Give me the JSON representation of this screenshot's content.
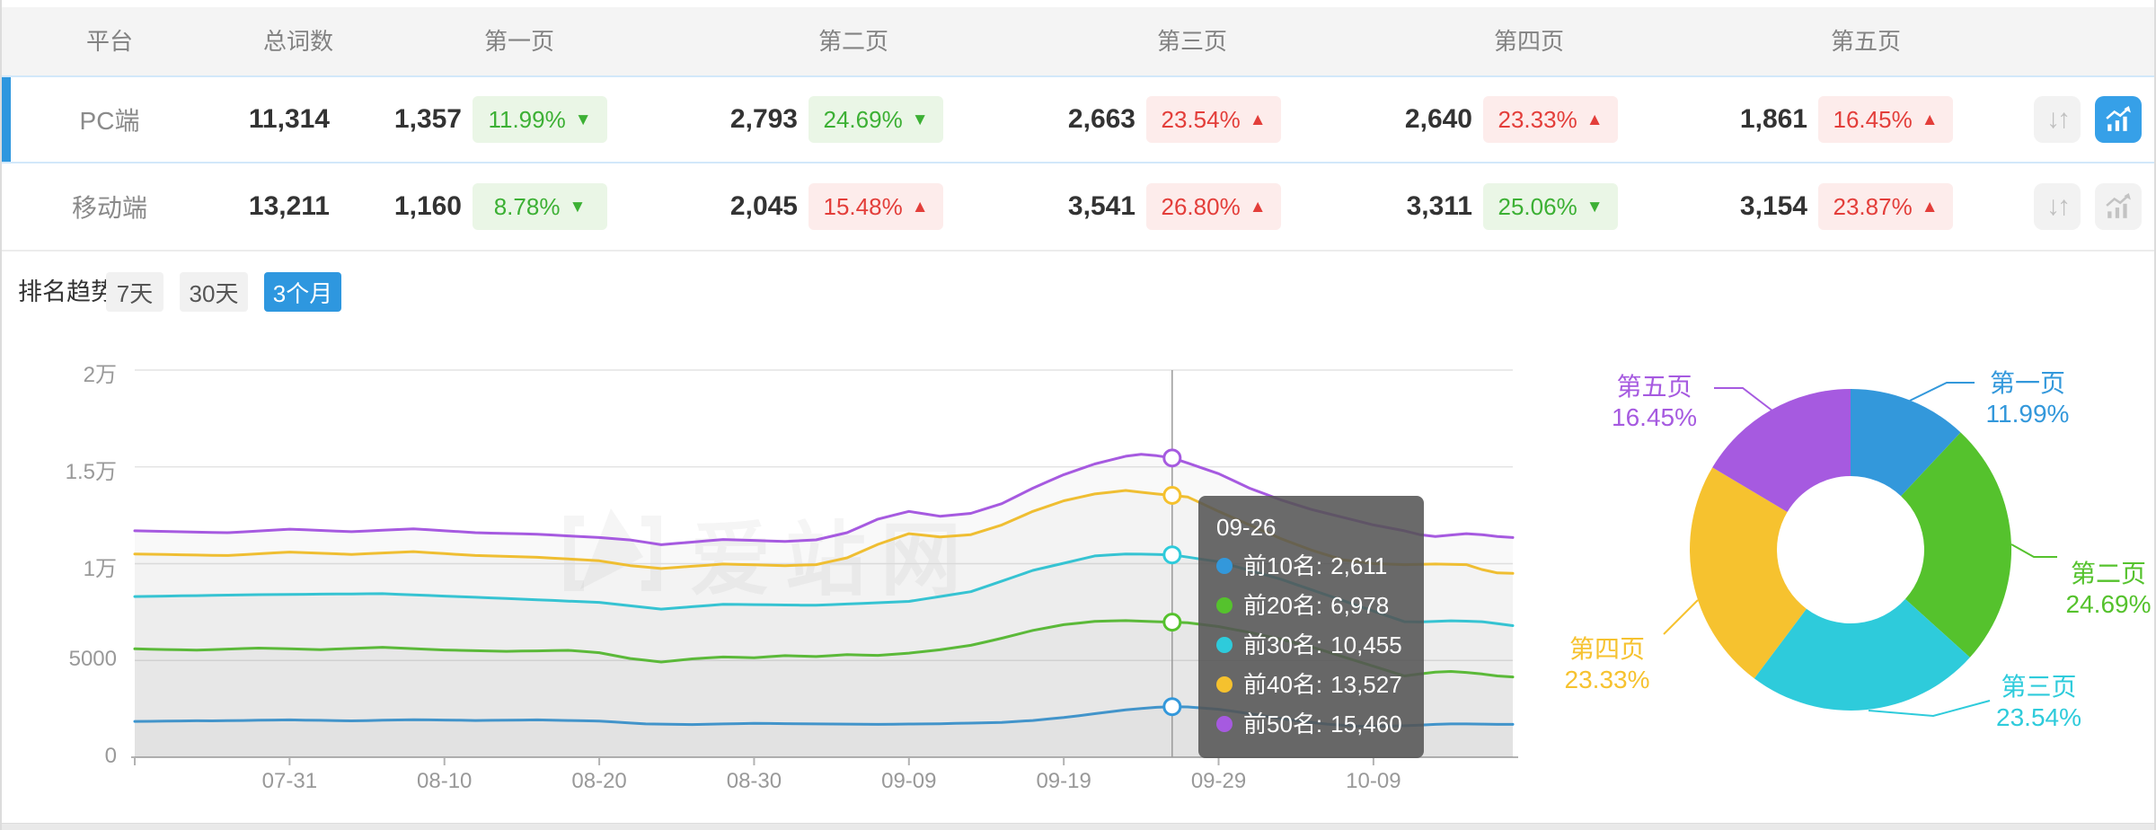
{
  "table": {
    "headers": {
      "platform": "平台",
      "total": "总词数",
      "p1": "第一页",
      "p2": "第二页",
      "p3": "第三页",
      "p4": "第四页",
      "p5": "第五页"
    },
    "rows": [
      {
        "platform": "PC端",
        "total": "11,314",
        "chart_active": true,
        "pages": [
          {
            "count": "1,357",
            "pct": "11.99%",
            "dir": "down"
          },
          {
            "count": "2,793",
            "pct": "24.69%",
            "dir": "down"
          },
          {
            "count": "2,663",
            "pct": "23.54%",
            "dir": "up"
          },
          {
            "count": "2,640",
            "pct": "23.33%",
            "dir": "up"
          },
          {
            "count": "1,861",
            "pct": "16.45%",
            "dir": "up"
          }
        ]
      },
      {
        "platform": "移动端",
        "total": "13,211",
        "chart_active": false,
        "pages": [
          {
            "count": "1,160",
            "pct": "8.78%",
            "dir": "down"
          },
          {
            "count": "2,045",
            "pct": "15.48%",
            "dir": "up"
          },
          {
            "count": "3,541",
            "pct": "26.80%",
            "dir": "up"
          },
          {
            "count": "3,311",
            "pct": "25.06%",
            "dir": "down"
          },
          {
            "count": "3,154",
            "pct": "23.87%",
            "dir": "up"
          }
        ]
      }
    ]
  },
  "trend": {
    "label": "排名趋势",
    "tabs": [
      {
        "label": "7天",
        "active": false
      },
      {
        "label": "30天",
        "active": false
      },
      {
        "label": "3个月",
        "active": true
      }
    ]
  },
  "tooltip": {
    "title": "09-26",
    "items": [
      {
        "label": "前10名:",
        "value": "2,611",
        "color": "#3398db"
      },
      {
        "label": "前20名:",
        "value": "6,978",
        "color": "#55c22d"
      },
      {
        "label": "前30名:",
        "value": "10,455",
        "color": "#2ecbdb"
      },
      {
        "label": "前40名:",
        "value": "13,527",
        "color": "#f5c12e"
      },
      {
        "label": "前50名:",
        "value": "15,460",
        "color": "#a65ae0"
      }
    ]
  },
  "watermark": "爱站网",
  "chart_data": [
    {
      "type": "line",
      "title": "排名趋势 (3个月)",
      "x_tick_labels": [
        "07-31",
        "08-10",
        "08-20",
        "08-30",
        "09-09",
        "09-19",
        "09-29",
        "10-09"
      ],
      "x_tick_idx": [
        10,
        20,
        30,
        40,
        50,
        60,
        70,
        80
      ],
      "ylim": [
        0,
        20000
      ],
      "y_ticks": [
        {
          "v": 0,
          "label": "0"
        },
        {
          "v": 5000,
          "label": "5000"
        },
        {
          "v": 10000,
          "label": "1万"
        },
        {
          "v": 15000,
          "label": "1.5万"
        },
        {
          "v": 20000,
          "label": "2万"
        }
      ],
      "grid": true,
      "crosshair_index": 67,
      "crosshair_date": "09-26",
      "series": [
        {
          "name": "前10名",
          "color": "#3398db",
          "values": [
            1850,
            1858,
            1866,
            1874,
            1882,
            1880,
            1890,
            1900,
            1910,
            1920,
            1930,
            1918,
            1905,
            1893,
            1880,
            1895,
            1910,
            1925,
            1940,
            1930,
            1920,
            1910,
            1900,
            1908,
            1915,
            1923,
            1930,
            1915,
            1900,
            1885,
            1870,
            1820,
            1770,
            1720,
            1710,
            1700,
            1690,
            1705,
            1720,
            1735,
            1750,
            1743,
            1735,
            1728,
            1720,
            1715,
            1710,
            1705,
            1700,
            1708,
            1715,
            1723,
            1730,
            1748,
            1765,
            1783,
            1800,
            1850,
            1900,
            1975,
            2050,
            2150,
            2250,
            2350,
            2450,
            2515,
            2580,
            2611,
            2600,
            2540,
            2480,
            2365,
            2250,
            2125,
            2000,
            1900,
            1800,
            1710,
            1650,
            1600,
            1600,
            1610,
            1630,
            1660,
            1700,
            1720,
            1720,
            1710,
            1700,
            1700
          ]
        },
        {
          "name": "前20名",
          "color": "#55c22d",
          "values": [
            5600,
            5583,
            5565,
            5548,
            5530,
            5558,
            5585,
            5613,
            5640,
            5620,
            5600,
            5580,
            5560,
            5590,
            5620,
            5650,
            5680,
            5645,
            5610,
            5575,
            5540,
            5523,
            5505,
            5488,
            5470,
            5483,
            5495,
            5508,
            5520,
            5460,
            5400,
            5250,
            5100,
            5010,
            4920,
            5000,
            5080,
            5130,
            5180,
            5160,
            5140,
            5195,
            5250,
            5225,
            5200,
            5250,
            5300,
            5280,
            5260,
            5320,
            5380,
            5465,
            5550,
            5665,
            5780,
            5965,
            6150,
            6350,
            6550,
            6700,
            6850,
            6935,
            7020,
            7040,
            7060,
            7030,
            7000,
            6978,
            6950,
            6850,
            6750,
            6600,
            6450,
            6275,
            6100,
            5900,
            5700,
            5450,
            5200,
            4950,
            4700,
            4450,
            4200,
            4300,
            4400,
            4430,
            4380,
            4300,
            4200,
            4150
          ]
        },
        {
          "name": "前30名",
          "color": "#2ecbdb",
          "values": [
            8300,
            8313,
            8325,
            8338,
            8350,
            8363,
            8375,
            8388,
            8400,
            8406,
            8413,
            8419,
            8425,
            8431,
            8438,
            8444,
            8450,
            8419,
            8388,
            8356,
            8325,
            8294,
            8263,
            8231,
            8200,
            8167,
            8133,
            8100,
            8067,
            8033,
            8000,
            7913,
            7825,
            7738,
            7650,
            7713,
            7775,
            7838,
            7900,
            7892,
            7883,
            7875,
            7867,
            7858,
            7850,
            7883,
            7917,
            7950,
            7983,
            8017,
            8050,
            8175,
            8300,
            8425,
            8550,
            8825,
            9100,
            9375,
            9650,
            9838,
            10025,
            10213,
            10400,
            10450,
            10500,
            10490,
            10480,
            10455,
            10337,
            10218,
            10100,
            9875,
            9650,
            9425,
            9200,
            8925,
            8650,
            8375,
            8100,
            7825,
            7550,
            7275,
            7000,
            6990,
            7020,
            7050,
            7030,
            7000,
            6900,
            6800
          ]
        },
        {
          "name": "前40名",
          "color": "#f5c12e",
          "values": [
            10500,
            10487,
            10473,
            10460,
            10447,
            10433,
            10420,
            10465,
            10510,
            10555,
            10600,
            10570,
            10540,
            10510,
            10480,
            10515,
            10550,
            10585,
            10620,
            10570,
            10520,
            10470,
            10420,
            10398,
            10375,
            10353,
            10330,
            10285,
            10240,
            10195,
            10150,
            10025,
            9900,
            9825,
            9750,
            9808,
            9865,
            9923,
            9980,
            9960,
            9940,
            9920,
            9900,
            9925,
            9950,
            10125,
            10300,
            10650,
            11000,
            11275,
            11550,
            11465,
            11380,
            11440,
            11500,
            11750,
            12000,
            12350,
            12700,
            12975,
            13250,
            13425,
            13600,
            13690,
            13780,
            13690,
            13600,
            13527,
            13450,
            13075,
            12700,
            12350,
            12000,
            11650,
            11300,
            11000,
            10700,
            10450,
            10200,
            10100,
            10000,
            9975,
            9950,
            9965,
            9980,
            9965,
            9950,
            9700,
            9520,
            9500
          ]
        },
        {
          "name": "前50名",
          "color": "#a65ae0",
          "values": [
            11700,
            11683,
            11665,
            11648,
            11630,
            11615,
            11600,
            11645,
            11690,
            11735,
            11780,
            11748,
            11715,
            11683,
            11650,
            11688,
            11725,
            11763,
            11800,
            11750,
            11700,
            11650,
            11600,
            11580,
            11560,
            11540,
            11520,
            11478,
            11435,
            11393,
            11350,
            11288,
            11225,
            11103,
            10980,
            11048,
            11115,
            11183,
            11250,
            11225,
            11200,
            11175,
            11150,
            11190,
            11230,
            11415,
            11600,
            11950,
            12300,
            12500,
            12700,
            12575,
            12450,
            12525,
            12600,
            12850,
            13100,
            13500,
            13900,
            14250,
            14600,
            14875,
            15150,
            15350,
            15550,
            15650,
            15580,
            15460,
            15200,
            14925,
            14650,
            14275,
            13900,
            13600,
            13300,
            13050,
            12800,
            12600,
            12400,
            12200,
            12000,
            11850,
            11700,
            11500,
            11400,
            11480,
            11550,
            11500,
            11400,
            11350
          ]
        }
      ]
    },
    {
      "type": "pie",
      "labels": [
        "第一页",
        "第二页",
        "第三页",
        "第四页",
        "第五页"
      ],
      "values": [
        11.99,
        24.69,
        23.54,
        23.33,
        16.45
      ],
      "display": [
        "11.99%",
        "24.69%",
        "23.54%",
        "23.33%",
        "16.45%"
      ],
      "colors": [
        "#3398db",
        "#55c22d",
        "#2ecbdb",
        "#f6c22f",
        "#a65ae0"
      ],
      "legend_position": "outside-labels"
    }
  ]
}
